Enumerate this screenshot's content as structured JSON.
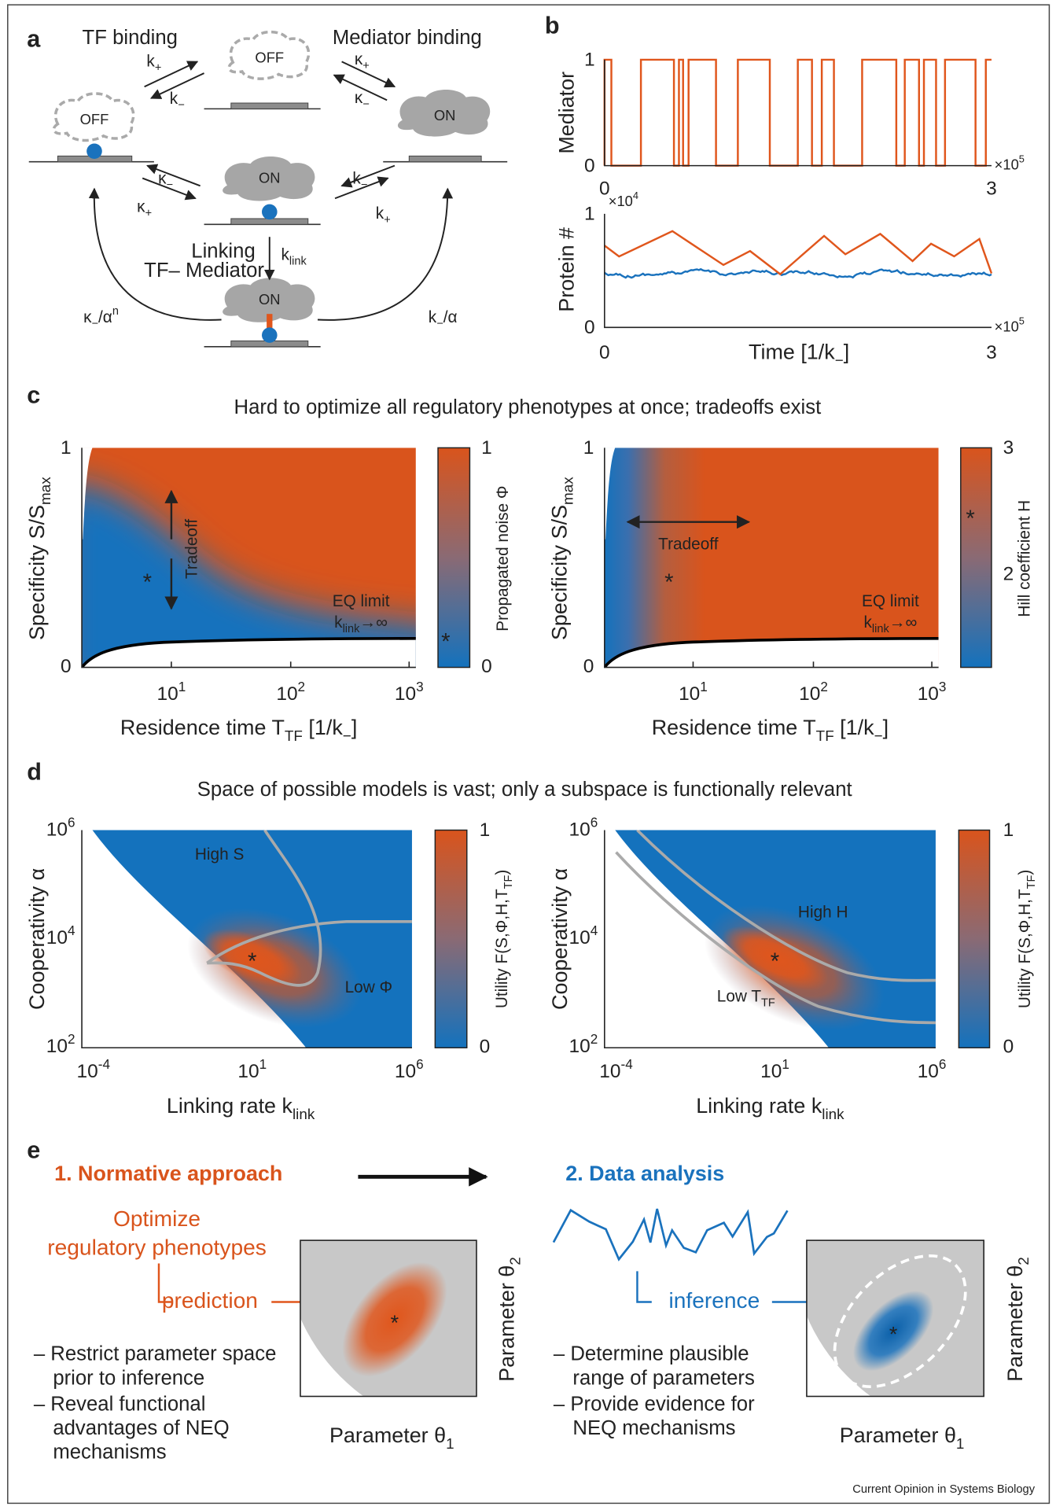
{
  "panel_labels": [
    "a",
    "b",
    "c",
    "d",
    "e"
  ],
  "a": {
    "titles": [
      "TF binding",
      "Mediator binding"
    ],
    "states": [
      "OFF",
      "OFF",
      "ON",
      "ON",
      "ON"
    ],
    "rates": [
      [
        {
          "text": "k"
        },
        {
          "sub": "+"
        }
      ],
      [
        {
          "text": "k"
        },
        {
          "sub": "−"
        }
      ],
      [
        {
          "text": "κ"
        },
        {
          "sub": "+"
        }
      ],
      [
        {
          "text": "κ"
        },
        {
          "sub": "−"
        }
      ],
      [
        {
          "text": "κ"
        },
        {
          "sub": "−"
        }
      ],
      [
        {
          "text": "κ"
        },
        {
          "sub": "+"
        }
      ],
      [
        {
          "text": "k"
        },
        {
          "sub": "−"
        }
      ],
      [
        {
          "text": "k"
        },
        {
          "sub": "+"
        }
      ],
      [
        {
          "text": "k"
        },
        {
          "sub": "link"
        }
      ],
      [
        {
          "text": "κ"
        },
        {
          "sub": "−"
        },
        {
          "text": "/α"
        },
        {
          "sup": "n"
        }
      ],
      [
        {
          "text": "k"
        },
        {
          "sub": "−"
        },
        {
          "text": "/α"
        }
      ]
    ],
    "linking": [
      "Linking",
      "TF– Mediator"
    ]
  },
  "b": {
    "mediator": {
      "ylabel": "Mediator",
      "yticks": [
        "1",
        "0"
      ],
      "xticks": [
        "0",
        "3"
      ],
      "xscale": [
        {
          "text": "×10"
        },
        {
          "sup": "5"
        }
      ]
    },
    "protein": {
      "ylabel": "Protein #",
      "yticks": [
        "1",
        "0"
      ],
      "yscale": [
        {
          "text": "×10"
        },
        {
          "sup": "4"
        }
      ],
      "xticks": [
        "0",
        "3"
      ],
      "xscale": [
        {
          "text": "×10"
        },
        {
          "sup": "5"
        }
      ],
      "xlabel": [
        {
          "text": "Time  [1/k"
        },
        {
          "sub": "−"
        },
        {
          "text": "]"
        }
      ]
    }
  },
  "c": {
    "title": "Hard to optimize all regulatory phenotypes at once; tradeoffs exist",
    "plots": [
      {
        "ylabel": [
          {
            "text": "Specificity S/S"
          },
          {
            "sub": "max"
          }
        ],
        "yticks": [
          "1",
          "0"
        ],
        "xticks": [
          [
            {
              "text": "10"
            },
            {
              "sup": "1"
            }
          ],
          [
            {
              "text": "10"
            },
            {
              "sup": "2"
            }
          ],
          [
            {
              "text": "10"
            },
            {
              "sup": "3"
            }
          ]
        ],
        "xlabel": [
          {
            "text": "Residence time T"
          },
          {
            "sub": "TF"
          },
          {
            "text": " [1/k"
          },
          {
            "sub": "−"
          },
          {
            "text": "]"
          }
        ],
        "colorbar_ticks": [
          "1",
          "0"
        ],
        "colorbar_label": "Propagated noise Φ",
        "annotations": [
          "Tradeoff",
          "EQ limit",
          [
            {
              "text": "k"
            },
            {
              "sub": "link"
            },
            {
              "text": "→∞"
            }
          ]
        ]
      },
      {
        "ylabel": [
          {
            "text": "Specificity S/S"
          },
          {
            "sub": "max"
          }
        ],
        "yticks": [
          "1",
          "0"
        ],
        "xticks": [
          [
            {
              "text": "10"
            },
            {
              "sup": "1"
            }
          ],
          [
            {
              "text": "10"
            },
            {
              "sup": "2"
            }
          ],
          [
            {
              "text": "10"
            },
            {
              "sup": "3"
            }
          ]
        ],
        "xlabel": [
          {
            "text": "Residence time T"
          },
          {
            "sub": "TF"
          },
          {
            "text": " [1/k"
          },
          {
            "sub": "−"
          },
          {
            "text": "]"
          }
        ],
        "colorbar_ticks": [
          "3",
          "2"
        ],
        "colorbar_label": "Hill coefficient H",
        "annotations": [
          "Tradeoff",
          "EQ limit",
          [
            {
              "text": "k"
            },
            {
              "sub": "link"
            },
            {
              "text": "→∞"
            }
          ]
        ]
      }
    ]
  },
  "d": {
    "title": "Space of possible models is vast; only a subspace is functionally relevant",
    "plots": [
      {
        "ylabel": "Cooperativity α",
        "yticks": [
          [
            {
              "text": "10"
            },
            {
              "sup": "6"
            }
          ],
          [
            {
              "text": "10"
            },
            {
              "sup": "4"
            }
          ],
          [
            {
              "text": "10"
            },
            {
              "sup": "2"
            }
          ]
        ],
        "xticks": [
          [
            {
              "text": "10"
            },
            {
              "sup": "-4"
            }
          ],
          [
            {
              "text": "10"
            },
            {
              "sup": "1"
            }
          ],
          [
            {
              "text": "10"
            },
            {
              "sup": "6"
            }
          ]
        ],
        "xlabel": [
          {
            "text": "Linking rate k"
          },
          {
            "sub": "link"
          }
        ],
        "colorbar_ticks": [
          "1",
          "0"
        ],
        "colorbar_label": [
          {
            "text": "Utility F(S,Φ,H,T"
          },
          {
            "sub": "TF"
          },
          {
            "text": ")"
          }
        ],
        "annotations": [
          "High S",
          "Low Φ"
        ]
      },
      {
        "ylabel": "Cooperativity α",
        "yticks": [
          [
            {
              "text": "10"
            },
            {
              "sup": "6"
            }
          ],
          [
            {
              "text": "10"
            },
            {
              "sup": "4"
            }
          ],
          [
            {
              "text": "10"
            },
            {
              "sup": "2"
            }
          ]
        ],
        "xticks": [
          [
            {
              "text": "10"
            },
            {
              "sup": "-4"
            }
          ],
          [
            {
              "text": "10"
            },
            {
              "sup": "1"
            }
          ],
          [
            {
              "text": "10"
            },
            {
              "sup": "6"
            }
          ]
        ],
        "xlabel": [
          {
            "text": "Linking rate k"
          },
          {
            "sub": "link"
          }
        ],
        "colorbar_ticks": [
          "1",
          "0"
        ],
        "colorbar_label": [
          {
            "text": "Utility F(S,Φ,H,T"
          },
          {
            "sub": "TF"
          },
          {
            "text": ")"
          }
        ],
        "annotations": [
          "High H",
          [
            {
              "text": "Low T"
            },
            {
              "sub": "TF"
            }
          ]
        ]
      }
    ]
  },
  "e": {
    "steps": [
      "1. Normative approach",
      "2. Data analysis"
    ],
    "goal": [
      "Optimize",
      "regulatory phenotypes"
    ],
    "prediction": "prediction",
    "inference": "inference",
    "left_bullets": [
      "– Restrict parameter space",
      "prior to inference",
      "– Reveal functional",
      "advantages of NEQ",
      "mechanisms"
    ],
    "right_bullets": [
      "– Determine plausible",
      "range of parameters",
      "– Provide evidence for",
      "NEQ mechanisms"
    ],
    "axis_labels": [
      [
        {
          "text": "Parameter θ"
        },
        {
          "sub": "2"
        }
      ],
      [
        {
          "text": "Parameter θ"
        },
        {
          "sub": "1"
        }
      ]
    ]
  },
  "footer": "Current Opinion in Systems Biology"
}
